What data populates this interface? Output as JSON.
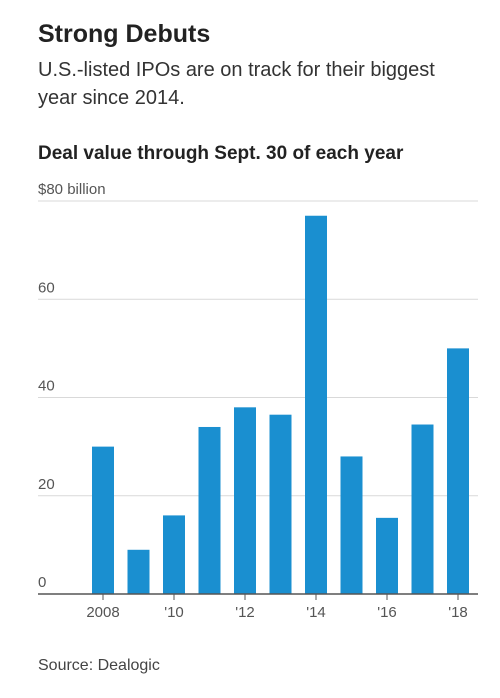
{
  "header": {
    "title": "Strong Debuts",
    "subtitle": "U.S.-listed IPOs are on track for their biggest year since 2014."
  },
  "chart_data": {
    "type": "bar",
    "title": "Deal value through Sept. 30 of each year",
    "xlabel": "",
    "ylabel": "",
    "categories": [
      "2008",
      "2009",
      "2010",
      "2011",
      "2012",
      "2013",
      "2014",
      "2015",
      "2016",
      "2017",
      "2018"
    ],
    "tick_labels": [
      "2008",
      "",
      "'10",
      "",
      "'12",
      "",
      "'14",
      "",
      "'16",
      "",
      "'18"
    ],
    "values": [
      30,
      9,
      16,
      34,
      38,
      36.5,
      77,
      28,
      15.5,
      34.5,
      50
    ],
    "ylim": [
      0,
      80
    ],
    "yticks": [
      0,
      20,
      40,
      60,
      80
    ],
    "ytick_labels": [
      "0",
      "20",
      "40",
      "60",
      "$80 billion"
    ],
    "grid": true,
    "colors": {
      "bar": "#1a8fd0",
      "grid": "#d9d9d9",
      "axis": "#555555",
      "tick_text": "#555555"
    }
  },
  "footer": {
    "source": "Source: Dealogic"
  }
}
